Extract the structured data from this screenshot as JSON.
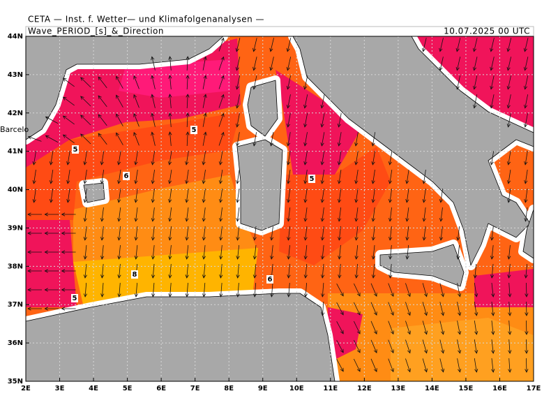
{
  "header": {
    "institute": "CETA — Inst. f. Wetter— und Klimafolgenanalysen —",
    "title": "Wave_PERIOD_[s]_&_Direction",
    "date": "10.07.2025 00 UTC"
  },
  "map": {
    "xlim": [
      2,
      17
    ],
    "ylim": [
      35,
      44
    ],
    "xticks": [
      {
        "value": 2,
        "label": "2E"
      },
      {
        "value": 3,
        "label": "3E"
      },
      {
        "value": 4,
        "label": "4E"
      },
      {
        "value": 5,
        "label": "5E"
      },
      {
        "value": 6,
        "label": "6E"
      },
      {
        "value": 7,
        "label": "7E"
      },
      {
        "value": 8,
        "label": "8E"
      },
      {
        "value": 9,
        "label": "9E"
      },
      {
        "value": 10,
        "label": "10E"
      },
      {
        "value": 11,
        "label": "11E"
      },
      {
        "value": 12,
        "label": "12E"
      },
      {
        "value": 13,
        "label": "13E"
      },
      {
        "value": 14,
        "label": "14E"
      },
      {
        "value": 15,
        "label": "15E"
      },
      {
        "value": 16,
        "label": "16E"
      },
      {
        "value": 17,
        "label": "17E"
      }
    ],
    "yticks": [
      {
        "value": 35,
        "label": "35N"
      },
      {
        "value": 36,
        "label": "36N"
      },
      {
        "value": 37,
        "label": "37N"
      },
      {
        "value": 38,
        "label": "38N"
      },
      {
        "value": 39,
        "label": "39N"
      },
      {
        "value": 40,
        "label": "40N"
      },
      {
        "value": 41,
        "label": "41N"
      },
      {
        "value": 42,
        "label": "42N"
      },
      {
        "value": 43,
        "label": "43N"
      },
      {
        "value": 44,
        "label": "44N"
      }
    ],
    "grid": true,
    "place_label": "Barcelo",
    "contour_labels": [
      5,
      6,
      5,
      8,
      6,
      5,
      5
    ]
  }
}
